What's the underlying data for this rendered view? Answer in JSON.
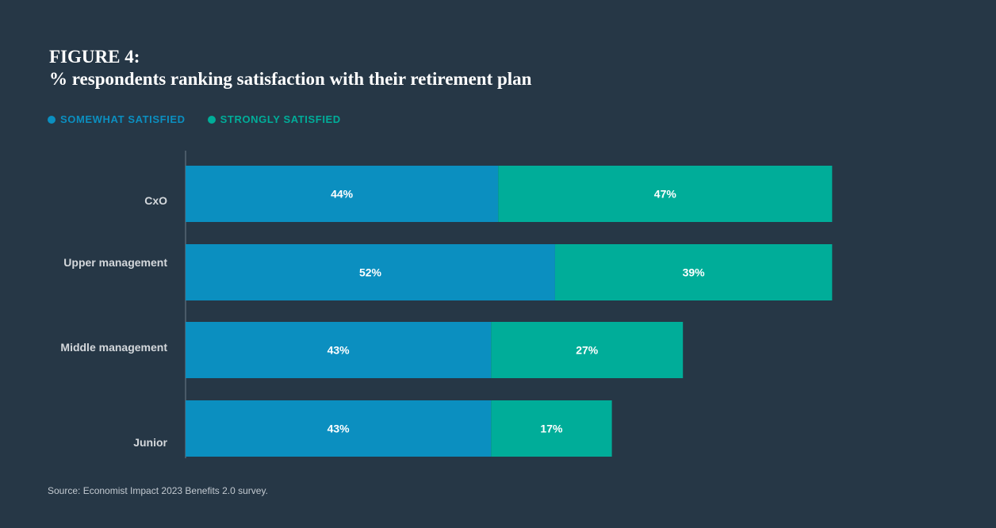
{
  "title": {
    "line1": "FIGURE 4:",
    "line2": "% respondents ranking satisfaction with their retirement plan"
  },
  "colors": {
    "background": "#263746",
    "somewhat": "#0b8fc0",
    "strongly": "#00ad99",
    "axis": "#6f7d8a",
    "category_label": "#d4d8dc",
    "bar_label": "#ffffff"
  },
  "legend": [
    {
      "label": "SOMEWHAT SATISFIED",
      "color": "#0b8fc0"
    },
    {
      "label": "STRONGLY SATISFIED",
      "color": "#00ad99"
    }
  ],
  "chart_data": {
    "type": "bar",
    "orientation": "horizontal",
    "stacked": true,
    "categories": [
      "CxO",
      "Upper management",
      "Middle management",
      "Junior"
    ],
    "series": [
      {
        "name": "SOMEWHAT SATISFIED",
        "values": [
          44,
          52,
          43,
          43
        ],
        "labels": [
          "44%",
          "52%",
          "43%",
          "43%"
        ]
      },
      {
        "name": "STRONGLY SATISFIED",
        "values": [
          47,
          39,
          27,
          17
        ],
        "labels": [
          "47%",
          "39%",
          "27%",
          "17%"
        ]
      }
    ],
    "xlim": [
      0,
      100
    ],
    "grid": false,
    "legend_position": "top-left"
  },
  "source": "Source: Economist Impact 2023 Benefits 2.0 survey."
}
